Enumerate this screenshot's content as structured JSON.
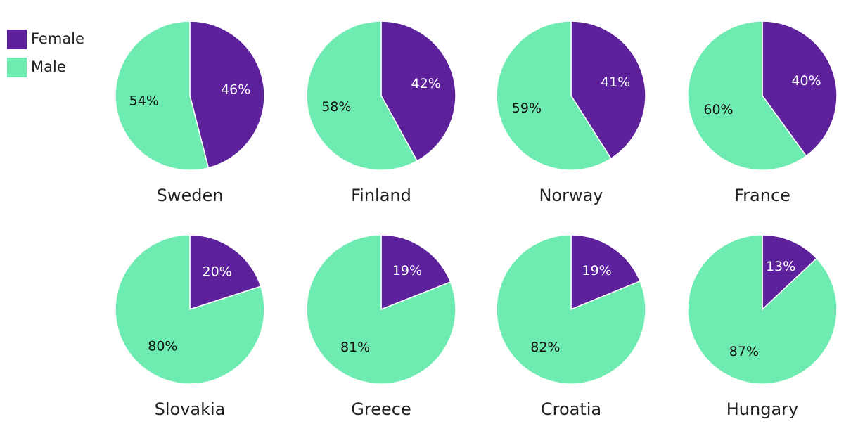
{
  "chart_data": [
    {
      "type": "pie",
      "title": "Sweden",
      "categories": [
        "Female",
        "Male"
      ],
      "values": [
        46,
        54
      ],
      "value_labels": [
        "46%",
        "54%"
      ],
      "colors": [
        "#5c219b",
        "#6eebb0"
      ]
    },
    {
      "type": "pie",
      "title": "Finland",
      "categories": [
        "Female",
        "Male"
      ],
      "values": [
        42,
        58
      ],
      "value_labels": [
        "42%",
        "58%"
      ],
      "colors": [
        "#5c219b",
        "#6eebb0"
      ]
    },
    {
      "type": "pie",
      "title": "Norway",
      "categories": [
        "Female",
        "Male"
      ],
      "values": [
        41,
        59
      ],
      "value_labels": [
        "41%",
        "59%"
      ],
      "colors": [
        "#5c219b",
        "#6eebb0"
      ]
    },
    {
      "type": "pie",
      "title": "France",
      "categories": [
        "Female",
        "Male"
      ],
      "values": [
        40,
        60
      ],
      "value_labels": [
        "40%",
        "60%"
      ],
      "colors": [
        "#5c219b",
        "#6eebb0"
      ]
    },
    {
      "type": "pie",
      "title": "Slovakia",
      "categories": [
        "Female",
        "Male"
      ],
      "values": [
        20,
        80
      ],
      "value_labels": [
        "20%",
        "80%"
      ],
      "colors": [
        "#5c219b",
        "#6eebb0"
      ]
    },
    {
      "type": "pie",
      "title": "Greece",
      "categories": [
        "Female",
        "Male"
      ],
      "values": [
        19,
        81
      ],
      "value_labels": [
        "19%",
        "81%"
      ],
      "colors": [
        "#5c219b",
        "#6eebb0"
      ]
    },
    {
      "type": "pie",
      "title": "Croatia",
      "categories": [
        "Female",
        "Male"
      ],
      "values": [
        19,
        82
      ],
      "value_labels": [
        "19%",
        "82%"
      ],
      "colors": [
        "#5c219b",
        "#6eebb0"
      ]
    },
    {
      "type": "pie",
      "title": "Hungary",
      "categories": [
        "Female",
        "Male"
      ],
      "values": [
        13,
        87
      ],
      "value_labels": [
        "13%",
        "87%"
      ],
      "colors": [
        "#5c219b",
        "#6eebb0"
      ]
    }
  ]
}
